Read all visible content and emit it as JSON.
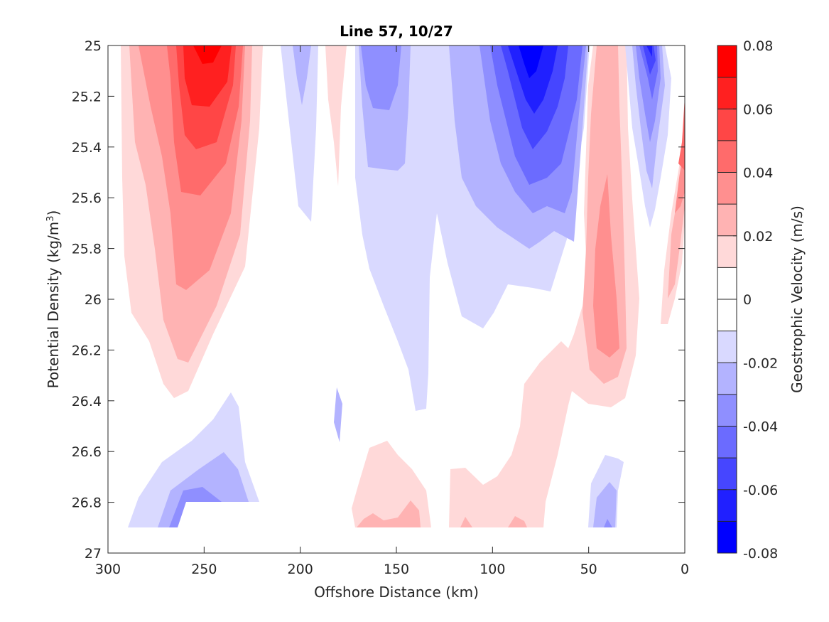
{
  "chart_data": {
    "type": "contour",
    "title": "Line 57, 10/27",
    "xlabel": "Offshore Distance (km)",
    "ylabel": "Potential Density (kg/m3)",
    "ylabel_parts": [
      "Potential Density (kg/m",
      "3",
      ")"
    ],
    "xlim": [
      300,
      0
    ],
    "x_reversed": true,
    "ylim": [
      25,
      27
    ],
    "y_reversed": true,
    "x_ticks": [
      300,
      250,
      200,
      150,
      100,
      50,
      0
    ],
    "y_ticks": [
      "25",
      "25.2",
      "25.4",
      "25.6",
      "25.8",
      "26",
      "26.2",
      "26.4",
      "26.6",
      "26.8",
      "27"
    ],
    "colorbar": {
      "label": "Geostrophic Velocity (m/s)",
      "range": [
        -0.08,
        0.08
      ],
      "tick_values": [
        -0.08,
        -0.06,
        -0.04,
        -0.02,
        0,
        0.02,
        0.04,
        0.06,
        0.08
      ],
      "tick_labels": [
        "-0.08",
        "-0.06",
        "-0.04",
        "-0.02",
        "0",
        "0.02",
        "0.04",
        "0.06",
        "0.08"
      ],
      "levels": [
        {
          "lo": -0.08,
          "hi": -0.07,
          "color": "#0000ff"
        },
        {
          "lo": -0.07,
          "hi": -0.06,
          "color": "#2020ff"
        },
        {
          "lo": -0.06,
          "hi": -0.05,
          "color": "#4646ff"
        },
        {
          "lo": -0.05,
          "hi": -0.04,
          "color": "#6b6bff"
        },
        {
          "lo": -0.04,
          "hi": -0.03,
          "color": "#8f8fff"
        },
        {
          "lo": -0.03,
          "hi": -0.02,
          "color": "#b3b3ff"
        },
        {
          "lo": -0.02,
          "hi": -0.01,
          "color": "#d9d9ff"
        },
        {
          "lo": -0.01,
          "hi": 0.0,
          "color": "#ffffff"
        },
        {
          "lo": 0.0,
          "hi": 0.01,
          "color": "#ffffff"
        },
        {
          "lo": 0.01,
          "hi": 0.02,
          "color": "#ffd9d9"
        },
        {
          "lo": 0.02,
          "hi": 0.03,
          "color": "#ffb3b3"
        },
        {
          "lo": 0.03,
          "hi": 0.04,
          "color": "#ff8f8f"
        },
        {
          "lo": 0.04,
          "hi": 0.05,
          "color": "#ff6b6b"
        },
        {
          "lo": 0.05,
          "hi": 0.06,
          "color": "#ff4646"
        },
        {
          "lo": 0.06,
          "hi": 0.07,
          "color": "#ff2020"
        },
        {
          "lo": 0.07,
          "hi": 0.08,
          "color": "#ff0000"
        }
      ]
    },
    "features": [
      {
        "name": "offshore-positive-core",
        "x": [
          220,
          292
        ],
        "y": [
          25,
          26.35
        ],
        "peak_velocity": 0.075
      },
      {
        "name": "offshore-negative-bottom",
        "x": [
          220,
          288
        ],
        "y": [
          26.35,
          26.9
        ],
        "peak_velocity": -0.045
      },
      {
        "name": "negative-jet-center",
        "x": [
          55,
          160
        ],
        "y": [
          25,
          26.45
        ],
        "peak_velocity": -0.075
      },
      {
        "name": "nearshore-negative-jet",
        "x": [
          8,
          30
        ],
        "y": [
          25,
          25.75
        ],
        "peak_velocity": -0.065
      },
      {
        "name": "nearshore-positive-band",
        "x": [
          25,
          55
        ],
        "y": [
          25,
          26.45
        ],
        "peak_velocity": 0.035
      },
      {
        "name": "coastal-positive-edge",
        "x": [
          0,
          10
        ],
        "y": [
          25.2,
          26.1
        ],
        "peak_velocity": 0.045
      },
      {
        "name": "deep-positive-patches",
        "x": [
          55,
          175
        ],
        "y": [
          26.5,
          26.9
        ],
        "peak_velocity": 0.025
      },
      {
        "name": "deep-negative-patch",
        "x": [
          30,
          50
        ],
        "y": [
          26.6,
          26.9
        ],
        "peak_velocity": -0.035
      }
    ]
  }
}
